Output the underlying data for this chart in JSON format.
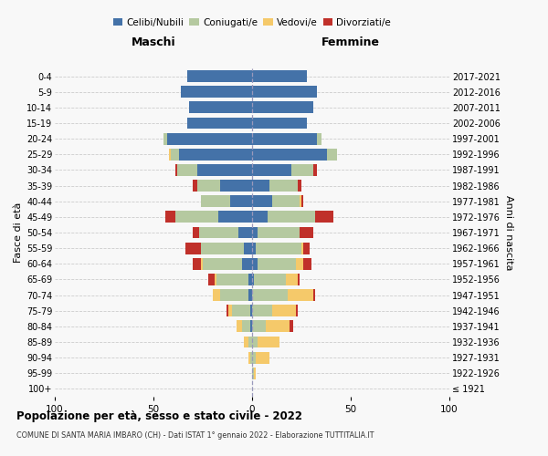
{
  "age_groups": [
    "100+",
    "95-99",
    "90-94",
    "85-89",
    "80-84",
    "75-79",
    "70-74",
    "65-69",
    "60-64",
    "55-59",
    "50-54",
    "45-49",
    "40-44",
    "35-39",
    "30-34",
    "25-29",
    "20-24",
    "15-19",
    "10-14",
    "5-9",
    "0-4"
  ],
  "birth_years": [
    "≤ 1921",
    "1922-1926",
    "1927-1931",
    "1932-1936",
    "1937-1941",
    "1942-1946",
    "1947-1951",
    "1952-1956",
    "1957-1961",
    "1962-1966",
    "1967-1971",
    "1972-1976",
    "1977-1981",
    "1982-1986",
    "1987-1991",
    "1992-1996",
    "1997-2001",
    "2002-2006",
    "2007-2011",
    "2012-2016",
    "2017-2021"
  ],
  "maschi": {
    "celibi": [
      0,
      0,
      0,
      0,
      1,
      1,
      2,
      2,
      5,
      4,
      7,
      17,
      11,
      16,
      28,
      37,
      43,
      33,
      32,
      36,
      33
    ],
    "coniugati": [
      0,
      0,
      1,
      2,
      4,
      9,
      14,
      16,
      20,
      22,
      20,
      22,
      15,
      12,
      10,
      4,
      2,
      0,
      0,
      0,
      0
    ],
    "vedovi": [
      0,
      0,
      1,
      2,
      3,
      2,
      4,
      1,
      1,
      0,
      0,
      0,
      0,
      0,
      0,
      1,
      0,
      0,
      0,
      0,
      0
    ],
    "divorziati": [
      0,
      0,
      0,
      0,
      0,
      1,
      0,
      3,
      4,
      8,
      3,
      5,
      0,
      2,
      1,
      0,
      0,
      0,
      0,
      0,
      0
    ]
  },
  "femmine": {
    "nubili": [
      0,
      0,
      0,
      0,
      0,
      0,
      0,
      1,
      3,
      2,
      3,
      8,
      10,
      9,
      20,
      38,
      33,
      28,
      31,
      33,
      28
    ],
    "coniugate": [
      0,
      1,
      2,
      3,
      7,
      10,
      18,
      16,
      19,
      23,
      21,
      24,
      14,
      14,
      11,
      5,
      2,
      0,
      0,
      0,
      0
    ],
    "vedove": [
      0,
      1,
      7,
      11,
      12,
      12,
      13,
      6,
      4,
      1,
      0,
      0,
      1,
      0,
      0,
      0,
      0,
      0,
      0,
      0,
      0
    ],
    "divorziate": [
      0,
      0,
      0,
      0,
      2,
      1,
      1,
      1,
      4,
      3,
      7,
      9,
      1,
      2,
      2,
      0,
      0,
      0,
      0,
      0,
      0
    ]
  },
  "colors": {
    "celibi": "#4472a8",
    "coniugati": "#b5c9a0",
    "vedovi": "#f5c96a",
    "divorziati": "#c0302a"
  },
  "xlim": 100,
  "title": "Popolazione per età, sesso e stato civile - 2022",
  "subtitle": "COMUNE DI SANTA MARIA IMBARO (CH) - Dati ISTAT 1° gennaio 2022 - Elaborazione TUTTITALIA.IT",
  "ylabel_left": "Fasce di età",
  "ylabel_right": "Anni di nascita",
  "xlabel_left": "Maschi",
  "xlabel_right": "Femmine",
  "bg_color": "#f8f8f8",
  "grid_color": "#cccccc"
}
